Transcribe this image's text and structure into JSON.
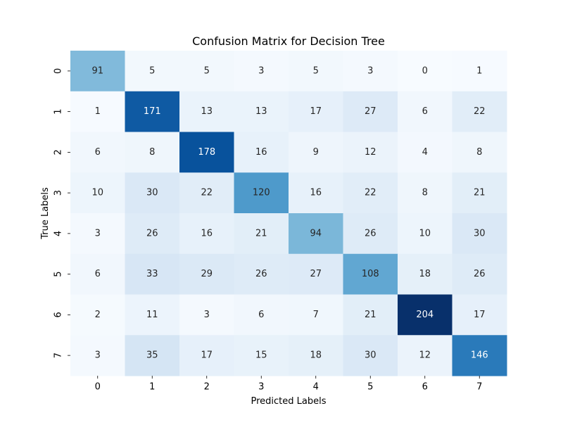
{
  "chart_data": {
    "type": "heatmap",
    "title": "Confusion Matrix for Decision Tree",
    "xlabel": "Predicted Labels",
    "ylabel": "True Labels",
    "x_categories": [
      "0",
      "1",
      "2",
      "3",
      "4",
      "5",
      "6",
      "7"
    ],
    "y_categories": [
      "0",
      "1",
      "2",
      "3",
      "4",
      "5",
      "6",
      "7"
    ],
    "values": [
      [
        91,
        5,
        5,
        3,
        5,
        3,
        0,
        1
      ],
      [
        1,
        171,
        13,
        13,
        17,
        27,
        6,
        22
      ],
      [
        6,
        8,
        178,
        16,
        9,
        12,
        4,
        8
      ],
      [
        10,
        30,
        22,
        120,
        16,
        22,
        8,
        21
      ],
      [
        3,
        26,
        16,
        21,
        94,
        26,
        10,
        30
      ],
      [
        6,
        33,
        29,
        26,
        27,
        108,
        18,
        26
      ],
      [
        2,
        11,
        3,
        6,
        7,
        21,
        204,
        17
      ],
      [
        3,
        35,
        17,
        15,
        18,
        30,
        12,
        146
      ]
    ],
    "colormap": "Blues",
    "value_range": [
      0,
      204
    ],
    "colorbar": false,
    "grid": false,
    "annotations": "cell values"
  }
}
